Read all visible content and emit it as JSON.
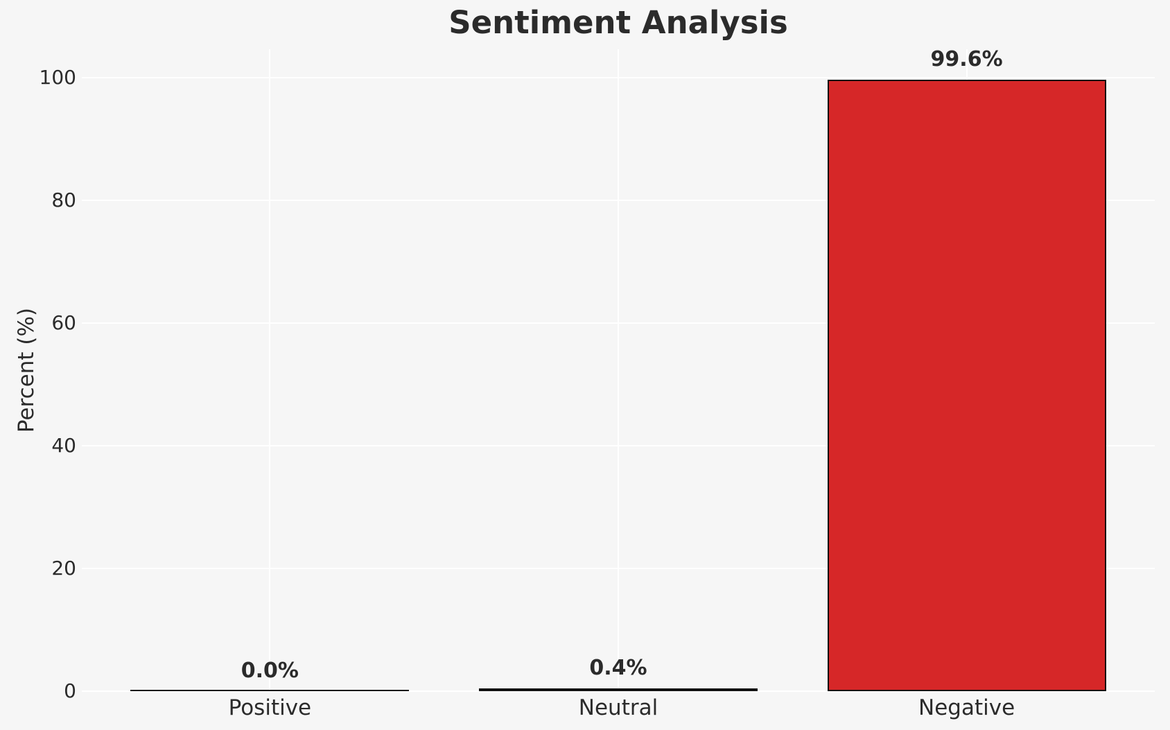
{
  "chart_data": {
    "type": "bar",
    "title": "Sentiment Analysis",
    "ylabel": "Percent (%)",
    "xlabel": "",
    "categories": [
      "Positive",
      "Neutral",
      "Negative"
    ],
    "values": [
      0.0,
      0.4,
      99.6
    ],
    "bar_labels": [
      "0.0%",
      "0.4%",
      "99.6%"
    ],
    "yticks": [
      0,
      20,
      40,
      60,
      80,
      100
    ],
    "ylim": [
      0,
      104.6
    ],
    "xlim": [
      -0.54,
      2.54
    ],
    "bar_width": 0.8,
    "grid": true,
    "legend": false,
    "colors": {
      "bar_fill": "#d62728",
      "bar_edge": "#111111",
      "background": "#f6f6f6",
      "gridline": "#ffffff",
      "text": "#2b2b2b"
    }
  }
}
